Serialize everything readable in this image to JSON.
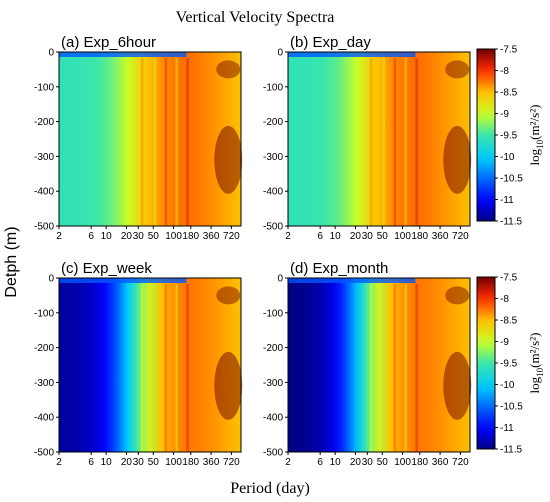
{
  "chart_data": {
    "title": "Vertical Velocity Spectra",
    "type": "heatmap",
    "xlabel": "Period (day)",
    "ylabel": "Detph (m)",
    "x_scale": "log",
    "xlim": [
      2,
      1000
    ],
    "x_ticks": [
      2,
      6,
      10,
      20,
      30,
      50,
      100,
      180,
      360,
      720
    ],
    "x_tick_labels": [
      "2",
      "6",
      "10",
      "20",
      "30",
      "50",
      "100",
      "180",
      "360",
      "720"
    ],
    "ylim": [
      -500,
      0
    ],
    "y_ticks": [
      0,
      -100,
      -200,
      -300,
      -400,
      -500
    ],
    "y_tick_labels": [
      "0",
      "-100",
      "-200",
      "-300",
      "-400",
      "-500"
    ],
    "colorbar": {
      "label_base": "log",
      "label_sub": "10",
      "label_rest": "(m²/s²)",
      "range": [
        -11.5,
        -7.5
      ],
      "ticks": [
        -7.5,
        -8,
        -8.5,
        -9,
        -9.5,
        -10,
        -10.5,
        -11,
        -11.5
      ],
      "tick_labels": [
        "-7.5",
        "-8",
        "-8.5",
        "-9",
        "-9.5",
        "-10",
        "-10.5",
        "-11",
        "-11.5"
      ]
    },
    "panels": [
      {
        "label": "(a) Exp_6hour",
        "shortest_period_level": -9.6,
        "depth_band": true
      },
      {
        "label": "(b) Exp_day",
        "shortest_period_level": -9.6,
        "depth_band": true
      },
      {
        "label": "(c) Exp_week",
        "shortest_period_level": -11.4,
        "depth_band": false
      },
      {
        "label": "(d) Exp_month",
        "shortest_period_level": -11.5,
        "depth_band": false
      }
    ]
  }
}
